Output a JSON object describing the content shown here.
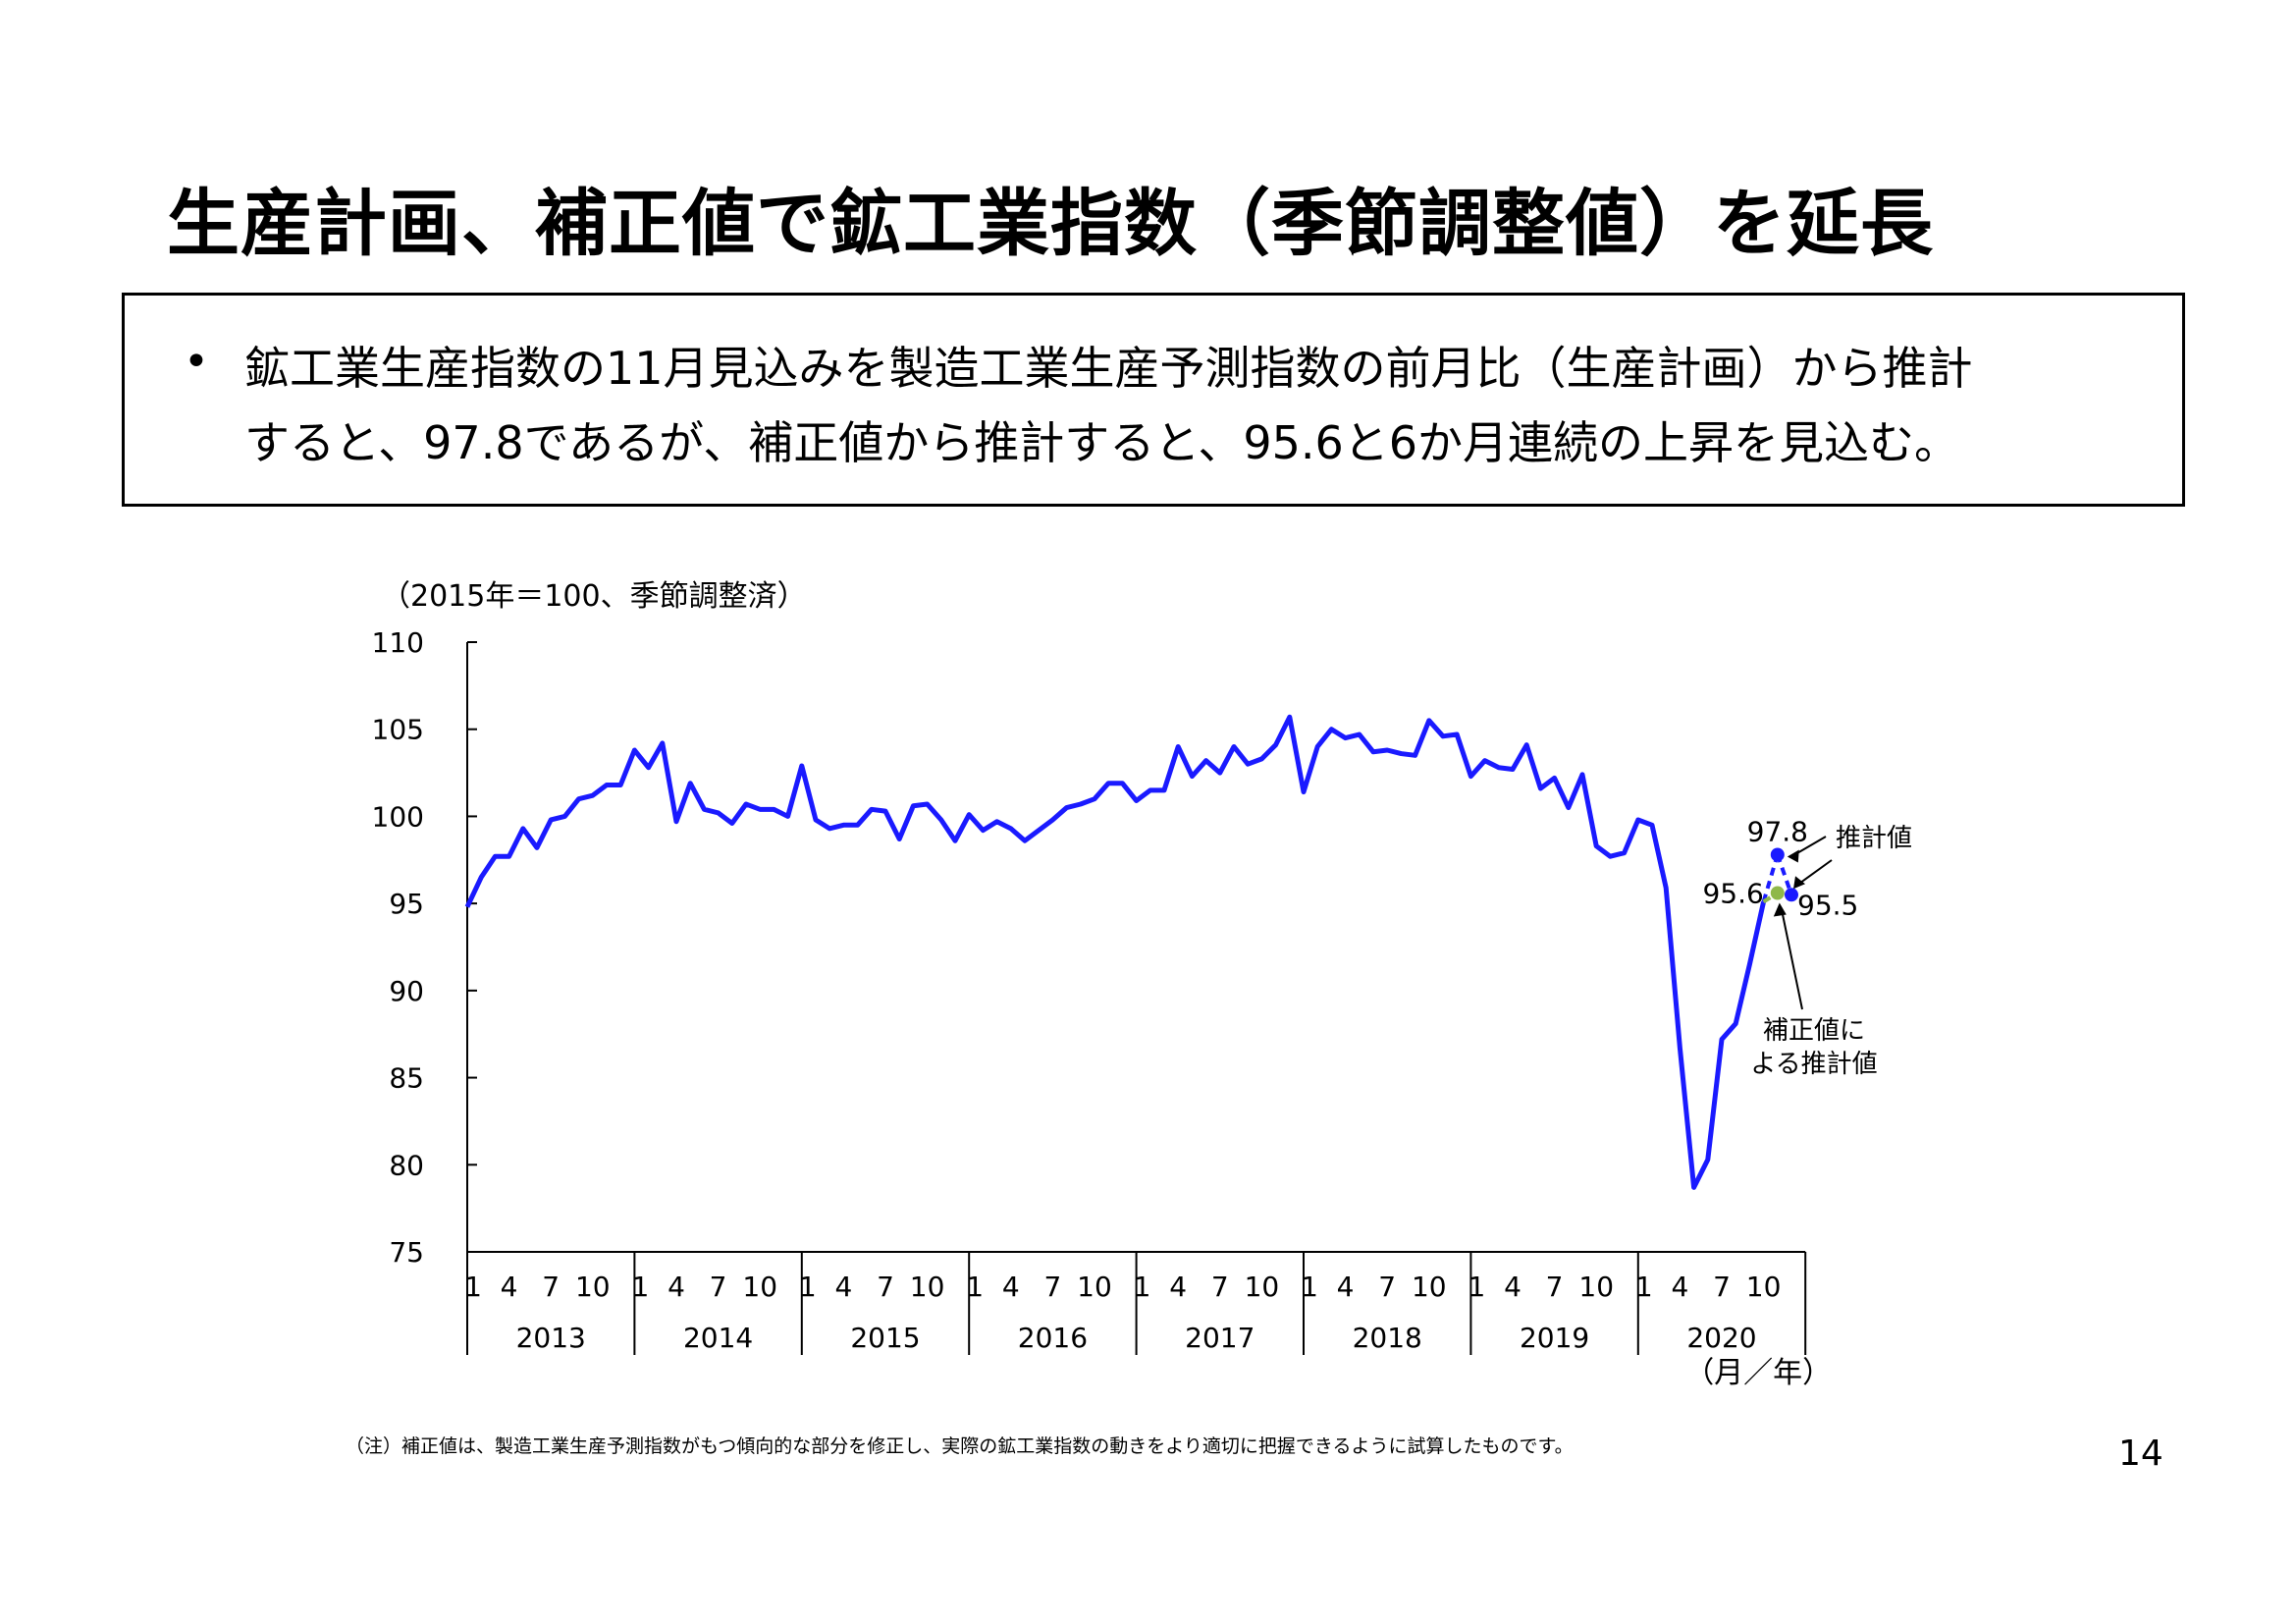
{
  "page": {
    "title": "生産計画、補正値で鉱工業指数（季節調整値）を延長",
    "bullet_lines": [
      "鉱工業生産指数の11月見込みを製造工業生産予測指数の前月比（生産計画）から推計",
      "すると、97.8であるが、補正値から推計すると、95.6と6か月連続の上昇を見込む。"
    ],
    "bullet_symbol": "•",
    "note": "（注）補正値は、製造工業生産予測指数がもつ傾向的な部分を修正し、実際の鉱工業指数の動きをより適切に把握できるように試算したものです。",
    "page_number": "14"
  },
  "chart_data": {
    "type": "line",
    "unit_label": "（2015年＝100、季節調整済）",
    "xlabel": "（月／年）",
    "ylim": [
      75,
      110
    ],
    "yticks": [
      "75",
      "80",
      "85",
      "90",
      "95",
      "100",
      "105",
      "110"
    ],
    "years": [
      "2013",
      "2014",
      "2015",
      "2016",
      "2017",
      "2018",
      "2019",
      "2020"
    ],
    "month_ticks": [
      "1",
      "4",
      "7",
      "10"
    ],
    "colors": {
      "series": "#1a1aff",
      "adjusted": "#8fb84a"
    },
    "series": [
      {
        "values": [
          94.8,
          96.5,
          97.7,
          97.7,
          99.3,
          98.2,
          99.8,
          100.0,
          101.0,
          101.2,
          101.8,
          101.8,
          103.8,
          102.8,
          104.2,
          99.7,
          101.9,
          100.4,
          100.2,
          99.6,
          100.7,
          100.4,
          100.4,
          100.0,
          102.9,
          99.8,
          99.3,
          99.5,
          99.5,
          100.4,
          100.3,
          98.7,
          100.6,
          100.7,
          99.8,
          98.6,
          100.1,
          99.2,
          99.7,
          99.3,
          98.6,
          99.2,
          99.8,
          100.5,
          100.7,
          101.0,
          101.9,
          101.9,
          100.9,
          101.5,
          101.5,
          104.0,
          102.3,
          103.2,
          102.5,
          104.0,
          103.0,
          103.3,
          104.1,
          105.7,
          101.4,
          104.0,
          105.0,
          104.5,
          104.7,
          103.7,
          103.8,
          103.6,
          103.5,
          105.5,
          104.6,
          104.7,
          102.3,
          103.2,
          102.8,
          102.7,
          104.1,
          101.6,
          102.2,
          100.5,
          102.4,
          98.3,
          97.7,
          97.9,
          99.8,
          99.5,
          95.9,
          86.7,
          78.7,
          80.3,
          87.2,
          88.1,
          91.5,
          95.1
        ]
      }
    ],
    "projections": {
      "plan": {
        "label": "推計値",
        "value": 97.8,
        "value_label": "97.8"
      },
      "adjusted": {
        "label_lines": [
          "補正値に",
          "よる推計値"
        ],
        "value": 95.6,
        "value_label": "95.6"
      },
      "next": {
        "value": 95.5,
        "value_label": "95.5"
      }
    }
  }
}
